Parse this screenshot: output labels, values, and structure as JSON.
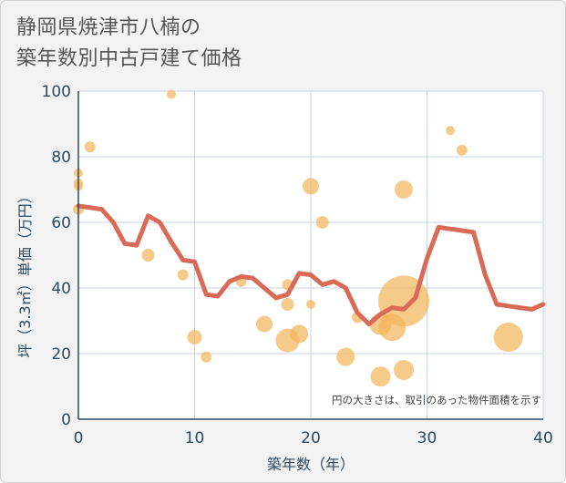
{
  "title": {
    "line1": "静岡県焼津市八楠の",
    "line2": "築年数別中古戸建て価格"
  },
  "chart_data": {
    "type": "scatter+line",
    "title": "静岡県焼津市八楠の築年数別中古戸建て価格",
    "xlabel": "築年数（年）",
    "ylabel": "坪（3.3㎡）単価（万円）",
    "xlim": [
      0,
      40
    ],
    "ylim": [
      0,
      100
    ],
    "xticks": [
      0,
      10,
      20,
      30,
      40
    ],
    "yticks": [
      0,
      20,
      40,
      60,
      80,
      100
    ],
    "grid": true,
    "note": "円の大きさは、取引のあった物件面積を示す",
    "colors": {
      "bubble": "#f2b65a",
      "line": "#d96a56",
      "axis_text": "#2d4a5f",
      "grid": "#c9d3df"
    },
    "bubbles": [
      {
        "x": 0,
        "y": 75,
        "r": 5
      },
      {
        "x": 0,
        "y": 71,
        "r": 5
      },
      {
        "x": 0,
        "y": 72,
        "r": 5
      },
      {
        "x": 0,
        "y": 64,
        "r": 6
      },
      {
        "x": 1,
        "y": 83,
        "r": 6
      },
      {
        "x": 6,
        "y": 50,
        "r": 7
      },
      {
        "x": 8,
        "y": 99,
        "r": 5
      },
      {
        "x": 9,
        "y": 44,
        "r": 6
      },
      {
        "x": 10,
        "y": 25,
        "r": 8
      },
      {
        "x": 11,
        "y": 19,
        "r": 6
      },
      {
        "x": 14,
        "y": 42,
        "r": 6
      },
      {
        "x": 16,
        "y": 29,
        "r": 9
      },
      {
        "x": 18,
        "y": 41,
        "r": 6
      },
      {
        "x": 18,
        "y": 35,
        "r": 7
      },
      {
        "x": 18,
        "y": 24,
        "r": 13
      },
      {
        "x": 19,
        "y": 26,
        "r": 10
      },
      {
        "x": 20,
        "y": 71,
        "r": 9
      },
      {
        "x": 20,
        "y": 35,
        "r": 5
      },
      {
        "x": 21,
        "y": 60,
        "r": 7
      },
      {
        "x": 23,
        "y": 19,
        "r": 10
      },
      {
        "x": 24,
        "y": 31,
        "r": 6
      },
      {
        "x": 26,
        "y": 13,
        "r": 11
      },
      {
        "x": 26,
        "y": 29,
        "r": 12
      },
      {
        "x": 27,
        "y": 28,
        "r": 15
      },
      {
        "x": 28,
        "y": 70,
        "r": 10
      },
      {
        "x": 28,
        "y": 15,
        "r": 11
      },
      {
        "x": 28,
        "y": 36,
        "r": 28
      },
      {
        "x": 32,
        "y": 88,
        "r": 5
      },
      {
        "x": 33,
        "y": 82,
        "r": 6
      },
      {
        "x": 37,
        "y": 25,
        "r": 16
      }
    ],
    "line": {
      "x": [
        0,
        1,
        2,
        3,
        4,
        5,
        6,
        7,
        8,
        9,
        10,
        11,
        12,
        13,
        14,
        15,
        16,
        17,
        18,
        19,
        20,
        21,
        22,
        23,
        24,
        25,
        26,
        27,
        28,
        29,
        30,
        31,
        32,
        33,
        34,
        35,
        36,
        37,
        38,
        39,
        40
      ],
      "y": [
        65,
        64.5,
        64,
        60,
        53.5,
        53,
        62,
        60,
        54,
        48.5,
        48,
        38,
        37.5,
        42,
        43.5,
        43,
        40,
        37,
        38,
        44.5,
        44,
        41,
        42,
        40,
        32.5,
        29,
        32,
        34,
        33.5,
        37,
        49,
        58.5,
        58,
        57.5,
        57,
        44,
        35,
        34.5,
        34,
        33.5,
        35
      ]
    }
  }
}
